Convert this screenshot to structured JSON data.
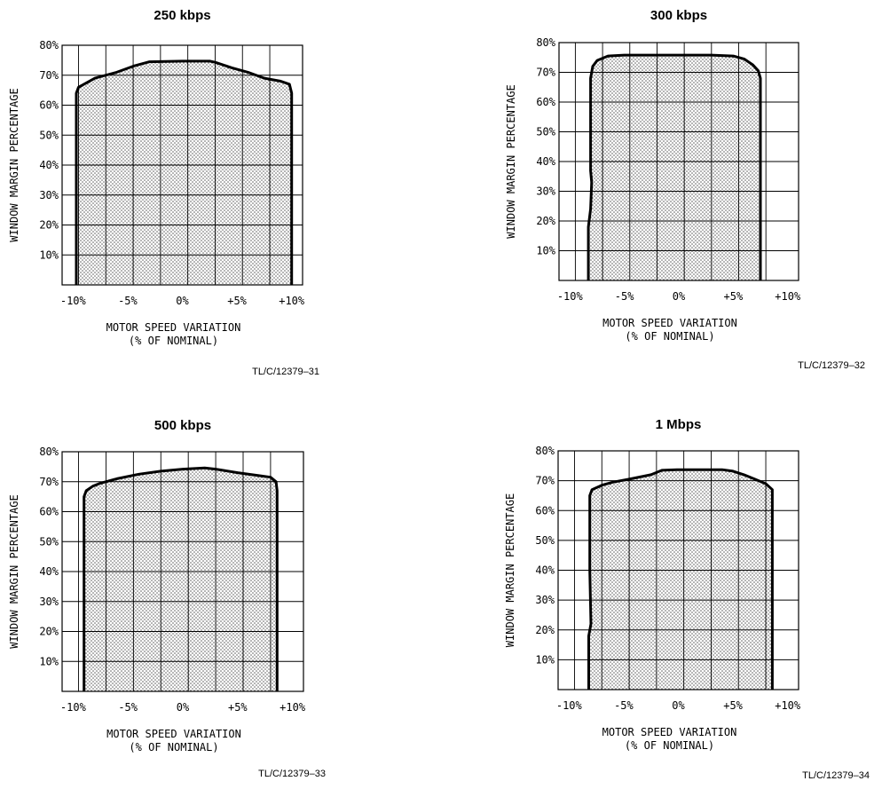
{
  "chart_data": [
    {
      "type": "area",
      "title": "250 kbps",
      "xlabel": [
        "MOTOR SPEED VARIATION",
        "(% OF NOMINAL)"
      ],
      "ylabel": "WINDOW MARGIN PERCENTAGE",
      "xlim": [
        -11,
        11
      ],
      "ylim": [
        0,
        80
      ],
      "x_ticks": [
        -10,
        -5,
        0,
        5,
        10
      ],
      "x_tick_labels": [
        "-10%",
        "-5%",
        "0%",
        "+5%",
        "+10%"
      ],
      "y_ticks": [
        10,
        20,
        30,
        40,
        50,
        60,
        70,
        80
      ],
      "y_tick_labels": [
        "10%",
        "20%",
        "30%",
        "40%",
        "50%",
        "60%",
        "70%",
        "80%"
      ],
      "grid": true,
      "series": [
        {
          "x": [
            -9.7,
            -9.7,
            -9.5,
            -9.0,
            -8.0,
            -6.0,
            -4.5,
            -3.0,
            0.0,
            2.5,
            3.0,
            4.5,
            6.0,
            7.5,
            9.0,
            9.8,
            10.0,
            10.0
          ],
          "y": [
            0,
            64,
            66,
            67,
            69,
            71,
            73,
            74.5,
            74.7,
            74.7,
            74.3,
            72.5,
            71,
            69,
            68,
            67,
            64,
            0
          ]
        }
      ],
      "footnote": "TL/C/12379–31"
    },
    {
      "type": "area",
      "title": "300 kbps",
      "xlabel": [
        "MOTOR SPEED VARIATION",
        "(% OF NOMINAL)"
      ],
      "ylabel": "WINDOW MARGIN PERCENTAGE",
      "xlim": [
        -11,
        11
      ],
      "ylim": [
        0,
        80
      ],
      "x_ticks": [
        -10,
        -5,
        0,
        5,
        10
      ],
      "x_tick_labels": [
        "-10%",
        "-5%",
        "0%",
        "+5%",
        "+10%"
      ],
      "y_ticks": [
        10,
        20,
        30,
        40,
        50,
        60,
        70,
        80
      ],
      "y_tick_labels": [
        "10%",
        "20%",
        "30%",
        "40%",
        "50%",
        "60%",
        "70%",
        "80%"
      ],
      "grid": true,
      "series": [
        {
          "x": [
            -8.3,
            -8.3,
            -8.1,
            -8.0,
            -8.1,
            -8.1,
            -7.9,
            -7.5,
            -6.5,
            -5.0,
            -3.0,
            0.0,
            3.0,
            5.0,
            6.0,
            6.8,
            7.3,
            7.5,
            7.5
          ],
          "y": [
            0,
            18,
            24,
            33,
            37,
            68,
            72,
            74,
            75.5,
            75.8,
            75.8,
            75.8,
            75.8,
            75.5,
            74.5,
            72.5,
            70.5,
            68,
            0
          ]
        }
      ],
      "footnote": "TL/C/12379–32"
    },
    {
      "type": "area",
      "title": "500 kbps",
      "xlabel": [
        "MOTOR SPEED VARIATION",
        "(% OF NOMINAL)"
      ],
      "ylabel": "WINDOW MARGIN PERCENTAGE",
      "xlim": [
        -11,
        11
      ],
      "ylim": [
        0,
        80
      ],
      "x_ticks": [
        -10,
        -5,
        0,
        5,
        10
      ],
      "x_tick_labels": [
        "-10%",
        "-5%",
        "0%",
        "+5%",
        "+10%"
      ],
      "y_ticks": [
        10,
        20,
        30,
        40,
        50,
        60,
        70,
        80
      ],
      "y_tick_labels": [
        "10%",
        "20%",
        "30%",
        "40%",
        "50%",
        "60%",
        "70%",
        "80%"
      ],
      "grid": true,
      "series": [
        {
          "x": [
            -9.0,
            -9.0,
            -8.8,
            -8.2,
            -7.5,
            -6.0,
            -4.0,
            -2.0,
            0.0,
            2.0,
            3.0,
            5.0,
            7.0,
            8.0,
            8.5,
            8.6,
            8.6
          ],
          "y": [
            0,
            65,
            67,
            68.5,
            69.5,
            71,
            72.5,
            73.5,
            74.2,
            74.6,
            74.2,
            73,
            72,
            71.5,
            70,
            67,
            0
          ]
        }
      ],
      "footnote": "TL/C/12379–33"
    },
    {
      "type": "area",
      "title": "1 Mbps",
      "xlabel": [
        "MOTOR SPEED VARIATION",
        "(% OF NOMINAL)"
      ],
      "ylabel": "WINDOW MARGIN PERCENTAGE",
      "xlim": [
        -11,
        11
      ],
      "ylim": [
        0,
        80
      ],
      "x_ticks": [
        -10,
        -5,
        0,
        5,
        10
      ],
      "x_tick_labels": [
        "-10%",
        "-5%",
        "0%",
        "+5%",
        "+10%"
      ],
      "y_ticks": [
        10,
        20,
        30,
        40,
        50,
        60,
        70,
        80
      ],
      "y_tick_labels": [
        "10%",
        "20%",
        "30%",
        "40%",
        "50%",
        "60%",
        "70%",
        "80%"
      ],
      "grid": true,
      "series": [
        {
          "x": [
            -8.2,
            -8.2,
            -8.0,
            -8.1,
            -8.1,
            -7.9,
            -7.0,
            -6.0,
            -4.5,
            -2.5,
            -1.5,
            0.0,
            2.5,
            4.0,
            5.0,
            6.0,
            7.0,
            8.0,
            8.6,
            8.6
          ],
          "y": [
            0,
            18,
            22,
            40,
            65,
            67,
            68.5,
            69.5,
            70.5,
            72,
            73.5,
            73.7,
            73.7,
            73.7,
            73.2,
            72,
            70.5,
            69,
            67,
            0
          ]
        }
      ],
      "footnote": "TL/C/12379–34"
    }
  ]
}
